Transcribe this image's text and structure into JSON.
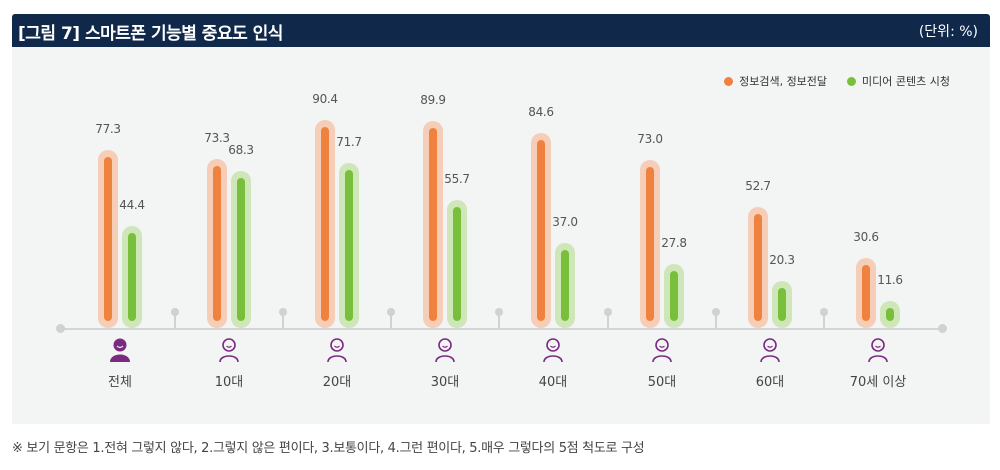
{
  "header": {
    "title": "[그림 7]  스마트폰 기능별 중요도 인식",
    "unit": "(단위: %)"
  },
  "legend": [
    {
      "label": "정보검색, 정보전달",
      "color": "#f0823f"
    },
    {
      "label": "미디어 콘텐츠 시청",
      "color": "#78c03c"
    }
  ],
  "categories": [
    {
      "label": "전체",
      "icon": "person-filled-icon",
      "v1": "77.3",
      "v2": "44.4"
    },
    {
      "label": "10대",
      "icon": "teen-icon",
      "v1": "73.3",
      "v2": "68.3"
    },
    {
      "label": "20대",
      "icon": "young-adult-icon",
      "v1": "90.4",
      "v2": "71.7"
    },
    {
      "label": "30대",
      "icon": "adult-tie-icon",
      "v1": "89.9",
      "v2": "55.7"
    },
    {
      "label": "40대",
      "icon": "adult-hair-tie-icon",
      "v1": "84.6",
      "v2": "37.0"
    },
    {
      "label": "50대",
      "icon": "middle-aged-icon",
      "v1": "73.0",
      "v2": "27.8"
    },
    {
      "label": "60대",
      "icon": "senior-icon",
      "v1": "52.7",
      "v2": "20.3"
    },
    {
      "label": "70세 이상",
      "icon": "elderly-cane-icon",
      "v1": "30.6",
      "v2": "11.6"
    }
  ],
  "note": "※ 보기 문항은 1.전혀 그렇지 않다, 2.그렇지 않은 편이다, 3.보통이다, 4.그런 편이다, 5.매우 그렇다의 5점 척도로 구성",
  "chart_data": {
    "type": "bar",
    "title": "[그림 7] 스마트폰 기능별 중요도 인식",
    "unit": "(단위: %)",
    "categories": [
      "전체",
      "10대",
      "20대",
      "30대",
      "40대",
      "50대",
      "60대",
      "70세 이상"
    ],
    "series": [
      {
        "name": "정보검색, 정보전달",
        "color": "#f0823f",
        "values": [
          77.3,
          73.3,
          90.4,
          89.9,
          84.6,
          73.0,
          52.7,
          30.6
        ]
      },
      {
        "name": "미디어 콘텐츠 시청",
        "color": "#78c03c",
        "values": [
          44.4,
          68.3,
          71.7,
          55.7,
          37.0,
          27.8,
          20.3,
          11.6
        ]
      }
    ],
    "xlabel": "",
    "ylabel": "",
    "ylim": [
      0,
      100
    ],
    "grid": false,
    "legend_position": "top-right",
    "data_labels": true
  }
}
